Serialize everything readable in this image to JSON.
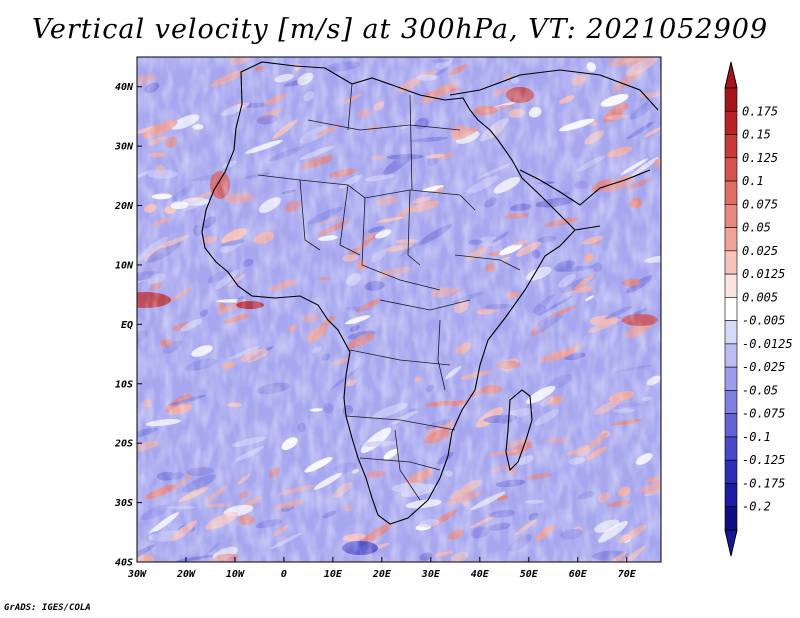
{
  "title": "Vertical velocity [m/s] at 300hPa, VT: 2021052909",
  "credit": "GrADS: IGES/COLA",
  "map": {
    "region": "Africa",
    "lon_range": [
      -30,
      77
    ],
    "lat_range": [
      -40,
      45
    ],
    "lon_labels": [
      "30W",
      "20W",
      "10W",
      "0",
      "10E",
      "20E",
      "30E",
      "40E",
      "50E",
      "60E",
      "70E"
    ],
    "lat_labels": [
      "40N",
      "30N",
      "20N",
      "10N",
      "EQ",
      "10S",
      "20S",
      "30S",
      "40S"
    ],
    "variable": "Vertical velocity",
    "units": "m/s",
    "level": "300hPa",
    "valid_time": "2021052909"
  },
  "colorbar": {
    "labels": [
      "0.175",
      "0.15",
      "0.125",
      "0.1",
      "0.075",
      "0.05",
      "0.025",
      "0.0125",
      "0.005",
      "-0.005",
      "-0.0125",
      "-0.025",
      "-0.05",
      "-0.075",
      "-0.1",
      "-0.125",
      "-0.175",
      "-0.2"
    ],
    "colors": [
      "#a5141a",
      "#b8232a",
      "#c83a3c",
      "#d6544f",
      "#e06c66",
      "#e9877f",
      "#f0a39b",
      "#f7c3bc",
      "#fbe3df",
      "#ffffff",
      "#d8d8f7",
      "#bcbcf1",
      "#9d9deb",
      "#8080e2",
      "#6363d8",
      "#4848cb",
      "#2e2eb8",
      "#1c1ca3",
      "#0e0e86"
    ],
    "top_arrow_color": "#a5141a",
    "bottom_arrow_color": "#16169a"
  }
}
